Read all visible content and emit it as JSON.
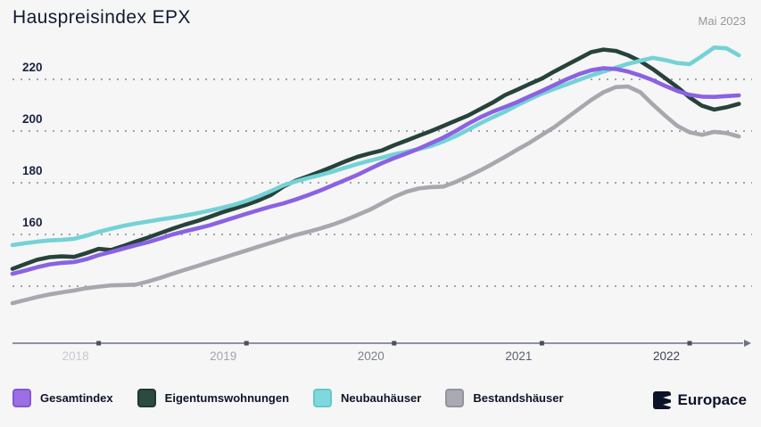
{
  "header": {
    "title": "Hauspreisindex EPX",
    "date_label": "Mai 2023"
  },
  "chart_data": {
    "type": "line",
    "title": "Hauspreisindex EPX",
    "x_axis_period": "Jun 2018 - Mai 2023, monatlich",
    "x_tick_labels": [
      "2018",
      "2019",
      "2020",
      "2021",
      "2022"
    ],
    "x_ticks": [
      {
        "label": "2018",
        "index": 7
      },
      {
        "label": "2019",
        "index": 19
      },
      {
        "label": "2020",
        "index": 31
      },
      {
        "label": "2021",
        "index": 43
      },
      {
        "label": "2022",
        "index": 55
      }
    ],
    "y_tick_labels": [
      220,
      200,
      180,
      160
    ],
    "y_gridline_values": [
      220,
      200,
      180,
      160,
      140
    ],
    "ylim": [
      130,
      235
    ],
    "grid": "dotted-horizontal",
    "legend_position": "bottom-left",
    "draw_order": [
      3,
      1,
      2,
      0
    ],
    "series": [
      {
        "name": "Gesamtindex",
        "color": "#8a62e3",
        "values": [
          144.8,
          146.0,
          147.3,
          148.4,
          149.0,
          149.3,
          150.4,
          152.0,
          153.2,
          154.5,
          155.8,
          157.0,
          158.4,
          160.0,
          161.2,
          162.3,
          163.5,
          165.0,
          166.5,
          168.0,
          169.4,
          170.8,
          172.0,
          173.5,
          175.2,
          177.0,
          179.0,
          181.0,
          183.0,
          185.3,
          187.6,
          189.5,
          191.3,
          193.2,
          195.3,
          197.5,
          200.0,
          202.8,
          205.3,
          207.5,
          209.3,
          211.2,
          213.4,
          215.5,
          217.8,
          220.0,
          222.0,
          223.5,
          224.3,
          224.0,
          223.0,
          221.5,
          219.7,
          217.5,
          215.5,
          214.0,
          213.3,
          213.2,
          213.5,
          213.8
        ]
      },
      {
        "name": "Eigentumswohnungen",
        "color": "#27423a",
        "values": [
          146.7,
          148.5,
          150.2,
          151.2,
          151.5,
          151.3,
          152.8,
          154.4,
          154.0,
          155.5,
          157.2,
          158.8,
          160.5,
          162.2,
          163.8,
          165.2,
          166.8,
          168.5,
          170.0,
          171.5,
          173.2,
          175.3,
          178.5,
          180.8,
          182.5,
          184.3,
          186.2,
          188.2,
          190.0,
          191.3,
          192.5,
          194.5,
          196.3,
          198.2,
          200.0,
          202.0,
          204.0,
          206.0,
          208.5,
          211.0,
          213.9,
          216.0,
          218.2,
          220.3,
          223.0,
          225.5,
          228.0,
          230.5,
          231.5,
          231.0,
          229.3,
          227.0,
          224.0,
          220.5,
          217.0,
          213.0,
          209.8,
          208.3,
          209.2,
          210.5
        ]
      },
      {
        "name": "Neubauhäuser",
        "color": "#74d2d6",
        "values": [
          155.9,
          156.6,
          157.2,
          157.7,
          157.9,
          158.3,
          159.5,
          161.0,
          162.2,
          163.3,
          164.2,
          165.0,
          165.8,
          166.5,
          167.3,
          168.2,
          169.2,
          170.3,
          171.5,
          173.0,
          174.8,
          176.8,
          179.0,
          180.5,
          181.8,
          183.0,
          184.3,
          185.8,
          187.2,
          188.5,
          189.7,
          191.0,
          192.0,
          193.0,
          194.2,
          196.0,
          198.0,
          200.5,
          203.0,
          205.3,
          207.5,
          210.0,
          212.3,
          214.5,
          216.3,
          218.0,
          219.8,
          221.5,
          223.0,
          224.5,
          226.0,
          227.2,
          228.3,
          227.5,
          226.3,
          225.9,
          229.0,
          232.3,
          232.0,
          229.3
        ]
      },
      {
        "name": "Bestandshäuser",
        "color": "#a7a7ae",
        "values": [
          133.4,
          134.6,
          135.8,
          136.8,
          137.6,
          138.3,
          139.2,
          139.8,
          140.3,
          140.4,
          140.6,
          141.8,
          143.2,
          144.8,
          146.3,
          147.8,
          149.3,
          150.8,
          152.3,
          153.8,
          155.3,
          156.8,
          158.3,
          159.8,
          161.0,
          162.3,
          163.8,
          165.5,
          167.5,
          169.5,
          172.0,
          174.5,
          176.5,
          177.8,
          178.3,
          178.5,
          180.3,
          182.5,
          184.8,
          187.3,
          190.0,
          192.8,
          195.5,
          198.5,
          201.5,
          205.0,
          208.5,
          212.0,
          215.0,
          217.0,
          217.2,
          215.0,
          210.3,
          206.0,
          202.0,
          199.5,
          198.5,
          199.7,
          199.2,
          197.9
        ]
      }
    ]
  },
  "legend": {
    "items": [
      {
        "label": "Gesamtindex",
        "fill": "#9c6fe4",
        "border": "#8657d2"
      },
      {
        "label": "Eigentumswohnungen",
        "fill": "#2d4a41",
        "border": "#203931"
      },
      {
        "label": "Neubauhäuser",
        "fill": "#7ed9dd",
        "border": "#66c6cb"
      },
      {
        "label": "Bestandshäuser",
        "fill": "#aaaab2",
        "border": "#93939d"
      }
    ]
  },
  "footer": {
    "brand": "Europace"
  }
}
